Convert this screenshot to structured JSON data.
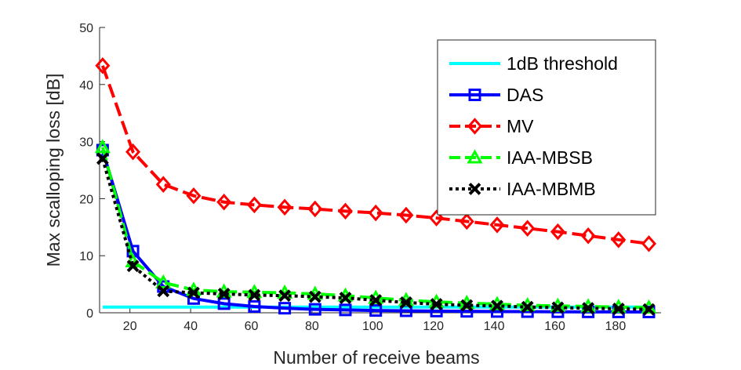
{
  "chart_data": {
    "type": "line",
    "xlabel": "Number of receive beams",
    "ylabel": "Max scalloping loss [dB]",
    "xlim": [
      10,
      195
    ],
    "ylim": [
      0,
      50
    ],
    "xticks": [
      20,
      40,
      60,
      80,
      100,
      120,
      140,
      160,
      180
    ],
    "yticks": [
      0,
      10,
      20,
      30,
      40,
      50
    ],
    "grid": false,
    "legend_position": "top-right",
    "x": [
      11,
      21,
      31,
      41,
      51,
      61,
      71,
      81,
      91,
      101,
      111,
      121,
      131,
      141,
      151,
      161,
      171,
      181,
      191
    ],
    "series": [
      {
        "name": "1dB threshold",
        "color": "#00ffff",
        "marker": "none",
        "dash": "solid",
        "values": [
          1,
          1,
          1,
          1,
          1,
          1,
          1,
          1,
          1,
          1,
          1,
          1,
          1,
          1,
          1,
          1,
          1,
          1,
          1
        ]
      },
      {
        "name": "DAS",
        "color": "#0000ff",
        "marker": "square",
        "dash": "solid",
        "values": [
          28.5,
          10.8,
          4.6,
          2.5,
          1.6,
          1.1,
          0.8,
          0.6,
          0.5,
          0.4,
          0.35,
          0.3,
          0.25,
          0.22,
          0.2,
          0.18,
          0.16,
          0.15,
          0.14
        ]
      },
      {
        "name": "MV",
        "color": "#ff0000",
        "marker": "diamond",
        "dash": "dashed",
        "values": [
          43.3,
          28.2,
          22.5,
          20.5,
          19.4,
          18.9,
          18.5,
          18.2,
          17.8,
          17.5,
          17.1,
          16.6,
          16.0,
          15.4,
          14.8,
          14.2,
          13.5,
          12.8,
          12.1
        ]
      },
      {
        "name": "IAA-MBSB",
        "color": "#00ff00",
        "marker": "triangle",
        "dash": "dashed",
        "values": [
          29.0,
          9.0,
          5.3,
          4.0,
          3.7,
          3.6,
          3.5,
          3.3,
          3.0,
          2.6,
          2.2,
          1.9,
          1.7,
          1.5,
          1.3,
          1.2,
          1.1,
          1.0,
          0.9
        ]
      },
      {
        "name": "IAA-MBMB",
        "color": "#000000",
        "marker": "x",
        "dash": "dotted",
        "values": [
          27.0,
          8.2,
          3.8,
          3.5,
          3.3,
          3.1,
          3.0,
          2.8,
          2.6,
          2.2,
          1.8,
          1.5,
          1.3,
          1.2,
          1.0,
          0.9,
          0.8,
          0.7,
          0.6
        ]
      }
    ]
  }
}
